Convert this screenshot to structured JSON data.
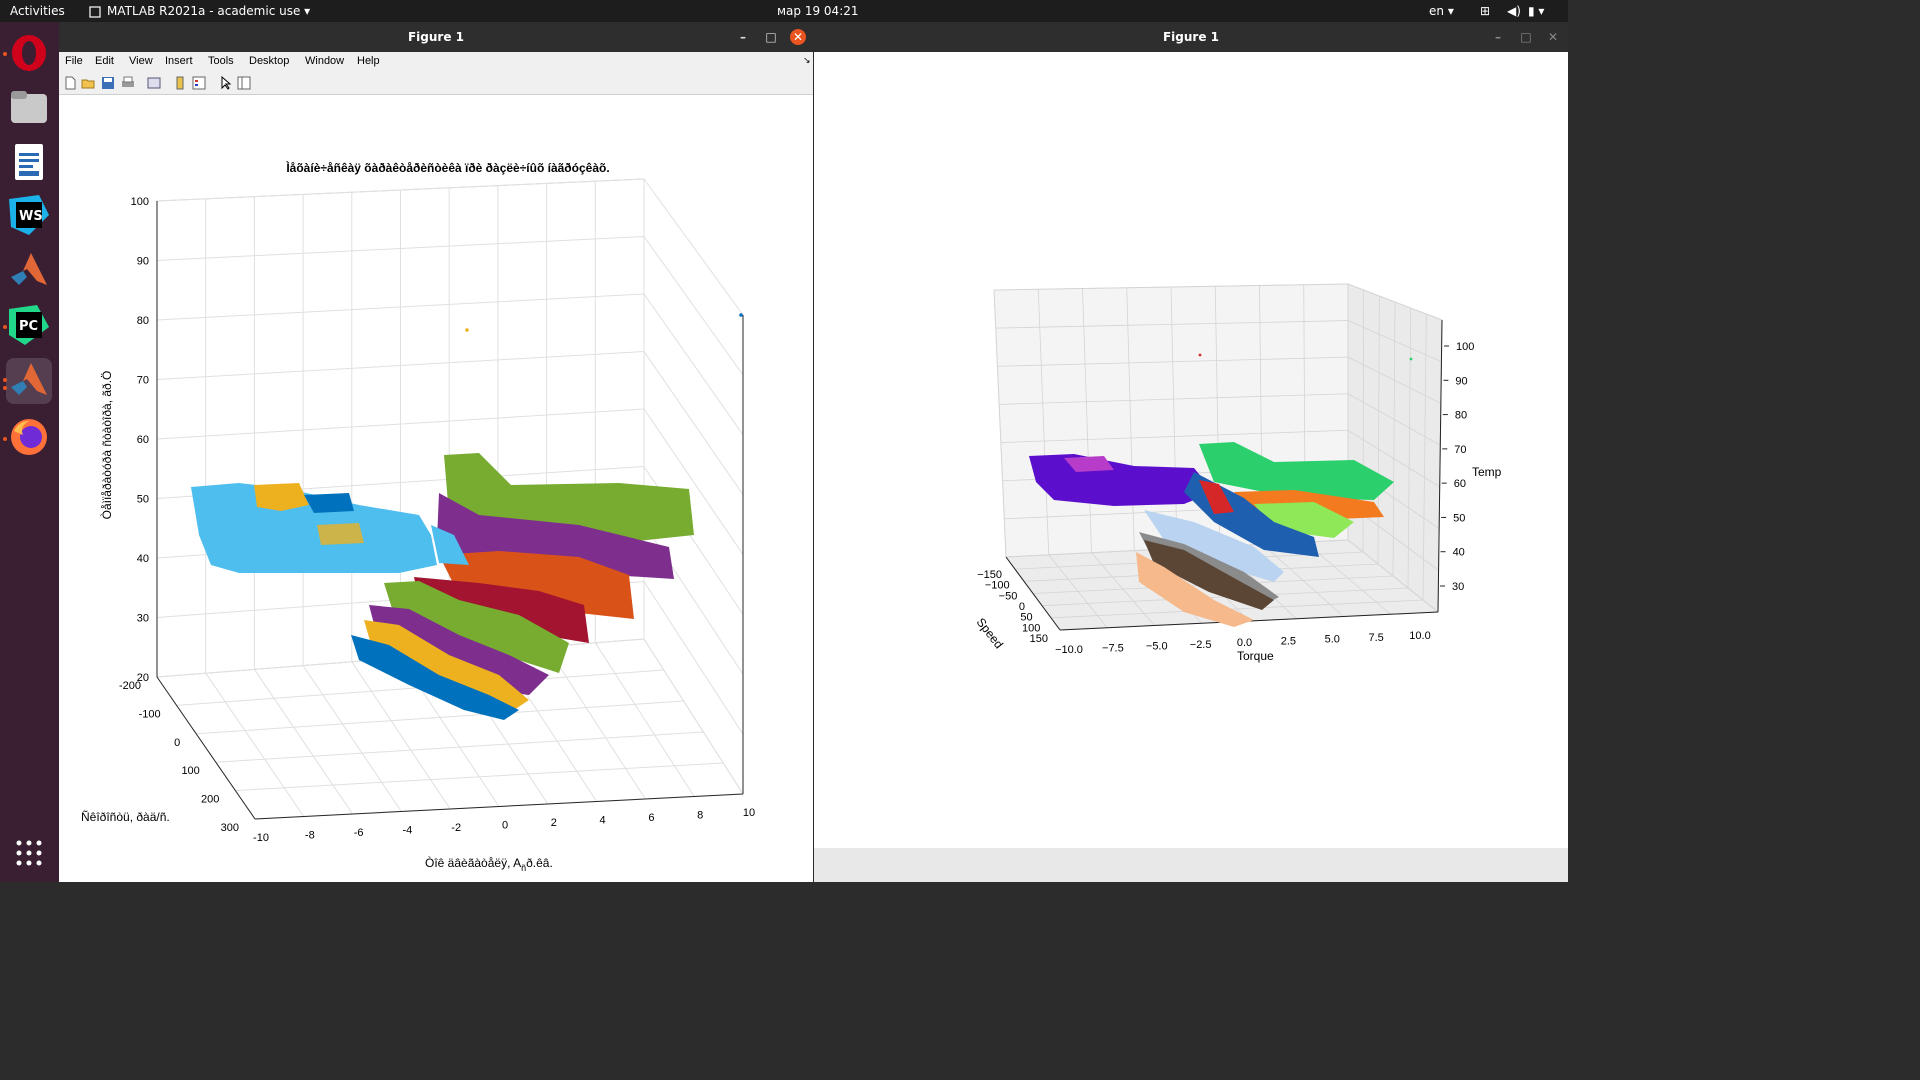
{
  "topbar": {
    "activities": "Activities",
    "app_name": "MATLAB R2021a - academic use",
    "datetime": "мар 19  04:21",
    "language": "en"
  },
  "dock": {
    "items": [
      "opera-icon",
      "files-icon",
      "writer-icon",
      "webstorm-icon",
      "matlab-icon",
      "pycharm-icon",
      "matlab-running-icon",
      "firefox-icon",
      "apps-grid-icon"
    ]
  },
  "window_left": {
    "title": "Figure 1",
    "menu": [
      "File",
      "Edit",
      "View",
      "Insert",
      "Tools",
      "Desktop",
      "Window",
      "Help"
    ],
    "plot": {
      "title": "Ìåõàíè÷åñêàÿ õàðàêòåðèñòèêà ïðè ðàçëè÷íûõ íàãðóçêàõ.",
      "zlabel": "Òåìïåðàòóðà ñòàòîðà, ãð.Ö",
      "ylabel": "Ñêîðîñòü, ðàä/ñ.",
      "xlabel_main": "Òîê äâèãàòåëÿ, A",
      "xlabel_sub": "ñ",
      "xlabel_tail": "ð.êâ.",
      "z_ticks": [
        "100",
        "90",
        "80",
        "70",
        "60",
        "50",
        "40",
        "30",
        "20"
      ],
      "y_ticks": [
        "-200",
        "-100",
        "0",
        "100",
        "200",
        "300"
      ],
      "x_ticks": [
        "-10",
        "-8",
        "-6",
        "-4",
        "-2",
        "0",
        "2",
        "4",
        "6",
        "8",
        "10"
      ]
    }
  },
  "window_right": {
    "title": "Figure 1",
    "plot": {
      "zlabel": "Temp",
      "ylabel": "Speed",
      "xlabel": "Torque",
      "z_ticks": [
        "100",
        "90",
        "80",
        "70",
        "60",
        "50",
        "40",
        "30"
      ],
      "y_ticks": [
        "−150",
        "−100",
        "−50",
        "0",
        "50",
        "100",
        "150"
      ],
      "x_ticks": [
        "−10.0",
        "−7.5",
        "−5.0",
        "−2.5",
        "0.0",
        "2.5",
        "5.0",
        "7.5",
        "10.0"
      ]
    }
  },
  "colors": {
    "matlab_blue": "#0072bd",
    "matlab_orange": "#d95319",
    "matlab_yellow": "#edb120",
    "matlab_purple": "#7e2f8e",
    "matlab_green": "#77ac30",
    "matlab_cyan": "#4dbeee",
    "matlab_red": "#a2142f",
    "close_red": "#e95420"
  }
}
